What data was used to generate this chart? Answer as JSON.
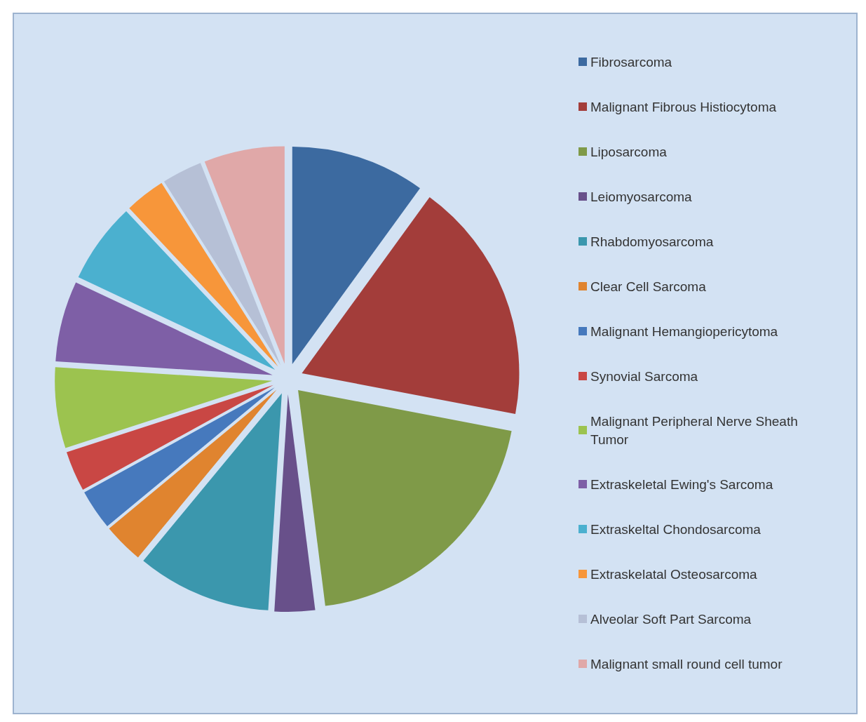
{
  "chart_data": {
    "type": "pie",
    "categories": [
      "Fibrosarcoma",
      "Malignant Fibrous Histiocytoma",
      "Liposarcoma",
      "Leiomyosarcoma",
      "Rhabdomyosarcoma",
      "Clear Cell Sarcoma",
      "Malignant Hemangiopericytoma",
      "Synovial Sarcoma",
      "Malignant Peripheral Nerve Sheath Tumor",
      "Extraskeletal Ewing's Sarcoma",
      "Extraskeltal Chondosarcoma",
      "Extraskelatal Osteosarcoma",
      "Alveolar Soft Part Sarcoma",
      "Malignant small round cell tumor"
    ],
    "values": [
      10,
      18,
      20,
      3,
      10,
      3,
      3,
      3,
      6,
      6,
      6,
      3,
      3,
      6
    ],
    "colors": [
      "#3c6aa0",
      "#a33d3a",
      "#7f9a48",
      "#68508a",
      "#3b97ad",
      "#e0842f",
      "#4679bd",
      "#c94744",
      "#9cc34f",
      "#7e5fa6",
      "#4bb0cf",
      "#f7963a",
      "#b6c0d6",
      "#e0a8a8"
    ],
    "legend": "right"
  }
}
